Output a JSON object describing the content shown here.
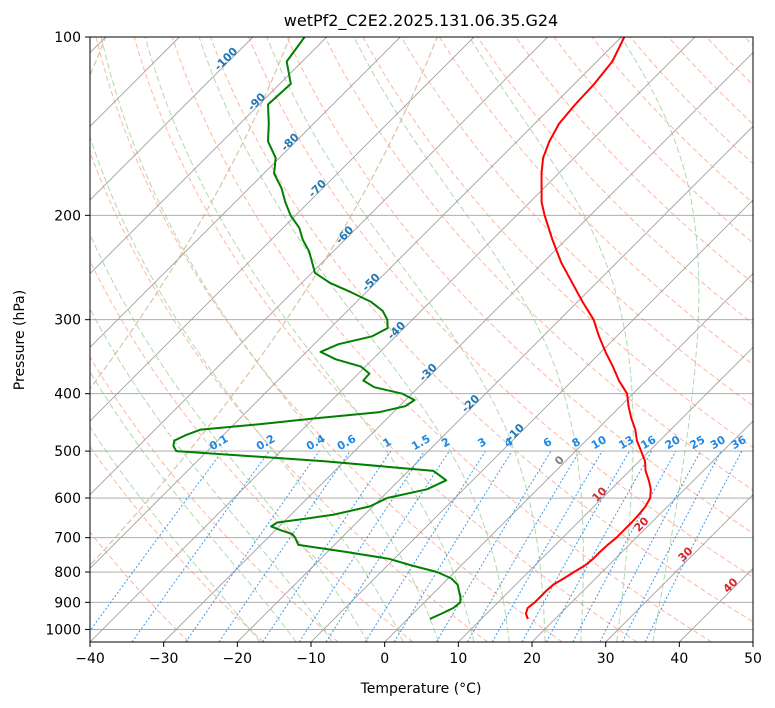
{
  "chart_data": {
    "type": "line",
    "title": "wetPf2_C2E2.2025.131.06.35.G24",
    "xlabel": "Temperature (°C)",
    "ylabel": "Pressure (hPa)",
    "xlim": [
      -40,
      50
    ],
    "ylim": [
      1050,
      100
    ],
    "y_scale": "log",
    "x_ticks": [
      -40,
      -30,
      -20,
      -10,
      0,
      10,
      20,
      30,
      40,
      50
    ],
    "y_ticks": [
      100,
      200,
      300,
      400,
      500,
      600,
      700,
      800,
      900,
      1000
    ],
    "grid": true,
    "series": [
      {
        "name": "",
        "color": "#ff0000",
        "note_quantity": "temperature",
        "pressure": [
          960,
          940,
          920,
          900,
          880,
          860,
          840,
          820,
          800,
          780,
          760,
          740,
          720,
          700,
          680,
          660,
          640,
          620,
          600,
          580,
          560,
          540,
          520,
          500,
          480,
          460,
          440,
          420,
          400,
          380,
          360,
          340,
          320,
          300,
          280,
          260,
          240,
          220,
          200,
          190,
          180,
          170,
          160,
          150,
          140,
          130,
          120,
          110,
          100
        ],
        "values": [
          16.3,
          15.3,
          14.8,
          15,
          15,
          15,
          15.1,
          15.7,
          16.2,
          16.8,
          17,
          17,
          17.1,
          17.3,
          17.3,
          17.3,
          17.2,
          17,
          16.5,
          15.4,
          13.9,
          12.2,
          10.8,
          8.9,
          6.9,
          5.2,
          3.1,
          1.1,
          -0.8,
          -3.7,
          -6.4,
          -9.4,
          -12.4,
          -15.4,
          -19.3,
          -23.3,
          -27.6,
          -31.8,
          -36.2,
          -38.4,
          -40.3,
          -42.3,
          -44.2,
          -45.6,
          -46.7,
          -47.1,
          -47.3,
          -47.9,
          -49.6
        ]
      },
      {
        "name": "",
        "color": "#008000",
        "note_quantity": "dewpoint",
        "pressure": [
          960,
          940,
          920,
          900,
          880,
          860,
          840,
          820,
          800,
          780,
          760,
          740,
          720,
          700,
          690,
          680,
          670,
          660,
          650,
          640,
          620,
          600,
          580,
          560,
          540,
          520,
          500,
          490,
          480,
          470,
          460,
          450,
          440,
          430,
          420,
          410,
          400,
          390,
          380,
          370,
          360,
          350,
          340,
          330,
          320,
          310,
          300,
          290,
          280,
          270,
          260,
          250,
          240,
          230,
          220,
          210,
          200,
          190,
          180,
          170,
          160,
          150,
          140,
          130,
          120,
          110,
          100
        ],
        "values": [
          3,
          3.9,
          4.7,
          4.9,
          4.1,
          3.1,
          2.1,
          0.4,
          -2.4,
          -6.7,
          -10.7,
          -17.4,
          -24.9,
          -26.3,
          -27.2,
          -29.3,
          -31.1,
          -30.8,
          -27.4,
          -24.2,
          -20.4,
          -19.2,
          -15,
          -13.6,
          -16.6,
          -32.7,
          -54.2,
          -55.3,
          -55.9,
          -55.1,
          -53.8,
          -46.3,
          -39.7,
          -32,
          -29.2,
          -28.8,
          -31.3,
          -36,
          -38.4,
          -38.5,
          -40.6,
          -45,
          -48.1,
          -46.7,
          -43.2,
          -42.2,
          -43.4,
          -45.2,
          -48,
          -51.9,
          -56.2,
          -59.6,
          -61.4,
          -63.3,
          -65.7,
          -67.8,
          -70.7,
          -73.2,
          -75.6,
          -78.6,
          -80.5,
          -83.8,
          -86.1,
          -88.8,
          -88.5,
          -92.1,
          -93
        ]
      }
    ],
    "background_lines": {
      "dry_adiabats_c": [
        -30,
        -20,
        -10,
        0,
        10,
        20,
        30,
        40,
        50,
        60,
        70,
        80,
        90,
        100,
        110,
        120,
        130,
        140,
        150,
        160,
        170,
        180,
        190,
        200
      ],
      "moist_adiabats_c": [
        -20,
        -15,
        -10,
        -5,
        0,
        5,
        10,
        15,
        20,
        25,
        30,
        35
      ],
      "mixing_ratios": [
        "0.1",
        "0.2",
        "0.4",
        "0.6",
        "1",
        "1.5",
        "2",
        "3",
        "4",
        "6",
        "8",
        "10",
        "13",
        "16",
        "20",
        "25",
        "30",
        "36"
      ],
      "isotherm_labels": [
        "-100",
        "-90",
        "-80",
        "-70",
        "-60",
        "-50",
        "-40",
        "-30",
        "-20",
        "-10"
      ],
      "wetbulb_labels": [
        "0",
        "10",
        "20",
        "30",
        "40"
      ]
    },
    "colors": {
      "temperature": "#ff0000",
      "dewpoint": "#008000",
      "isotherm": "#a0a0a0",
      "dry_adiabat": "#ff9e82",
      "moist_adiabat": "#8fc98f",
      "mixing_ratio": "#1e88e5",
      "isotherm_label": "#1f77b4",
      "wetbulb_label": "#d62728",
      "curved_line": "#d2b48c"
    }
  }
}
